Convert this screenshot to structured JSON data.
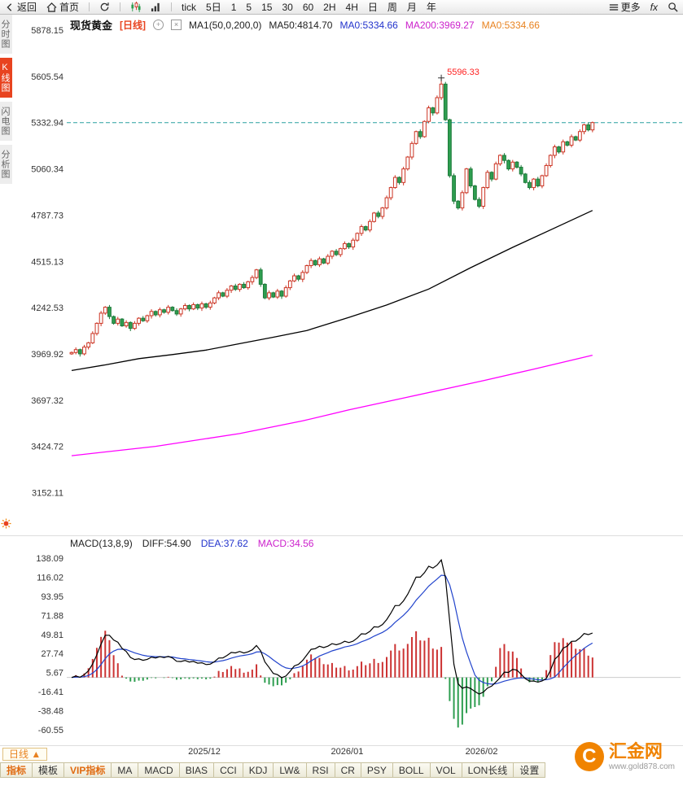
{
  "toolbar": {
    "items": [
      {
        "name": "back",
        "icon": "back-icon",
        "label": "返回"
      },
      {
        "name": "home",
        "icon": "home-icon",
        "label": "首页"
      },
      {
        "type": "sep"
      },
      {
        "name": "refresh",
        "icon": "refresh-icon",
        "label": ""
      },
      {
        "type": "sep"
      },
      {
        "name": "candle-view",
        "icon": "candles-icon",
        "label": ""
      },
      {
        "name": "volume-view",
        "icon": "volume-icon",
        "label": ""
      },
      {
        "type": "sep"
      },
      {
        "name": "tick",
        "label": "tick"
      },
      {
        "name": "range-5d",
        "label": "5日"
      },
      {
        "name": "period-1",
        "label": "1"
      },
      {
        "name": "period-5",
        "label": "5"
      },
      {
        "name": "period-15",
        "label": "15"
      },
      {
        "name": "period-30",
        "label": "30"
      },
      {
        "name": "period-60",
        "label": "60"
      },
      {
        "name": "period-2h",
        "label": "2H"
      },
      {
        "name": "period-4h",
        "label": "4H"
      },
      {
        "name": "period-day",
        "label": "日"
      },
      {
        "name": "period-week",
        "label": "周"
      },
      {
        "name": "period-month",
        "label": "月"
      },
      {
        "name": "period-year",
        "label": "年"
      },
      {
        "type": "spacer"
      },
      {
        "name": "more",
        "icon": "menu-icon",
        "label": "更多"
      },
      {
        "name": "fx",
        "label": "fx"
      },
      {
        "name": "search",
        "icon": "search-icon",
        "label": ""
      }
    ]
  },
  "sidebar": {
    "items": [
      {
        "label": "分时图",
        "active": false
      },
      {
        "label": "K线图",
        "active": true
      },
      {
        "label": "闪电图",
        "active": false
      },
      {
        "label": "分析图",
        "active": false
      }
    ]
  },
  "price_header": {
    "symbol": "现货黄金",
    "period": "[日线]",
    "ma_settings": "MA1(50,0,200,0)",
    "ma50": "MA50:4814.70",
    "ma0_blue": "MA0:5334.66",
    "ma200": "MA200:3969.27",
    "ma0_orange": "MA0:5334.66"
  },
  "macd_header": {
    "title": "MACD(13,8,9)",
    "diff": "DIFF:54.90",
    "dea": "DEA:37.62",
    "macd": "MACD:34.56"
  },
  "bottom": {
    "period_label": "日线 ▲",
    "tabs": [
      "指标",
      "模板",
      "VIP指标",
      "MA",
      "MACD",
      "BIAS",
      "CCI",
      "KDJ",
      "LW&",
      "RSI",
      "CR",
      "PSY",
      "BOLL",
      "VOL",
      "LON长线",
      "设置"
    ],
    "orange_tabs": [
      0,
      2
    ]
  },
  "watermark": {
    "brand": "汇金网",
    "url": "www.gold878.com",
    "logo_letter": "C"
  },
  "chart_data": {
    "type": "candlestick",
    "title": "现货黄金 [日线]",
    "first_open": 3970,
    "closes": [
      3978,
      3995,
      3970,
      4010,
      4035,
      4090,
      4150,
      4210,
      4245,
      4190,
      4150,
      4175,
      4135,
      4155,
      4120,
      4150,
      4180,
      4165,
      4195,
      4220,
      4200,
      4230,
      4215,
      4245,
      4225,
      4205,
      4235,
      4255,
      4235,
      4260,
      4240,
      4265,
      4245,
      4270,
      4300,
      4330,
      4310,
      4345,
      4370,
      4350,
      4380,
      4360,
      4395,
      4420,
      4465,
      4380,
      4300,
      4330,
      4305,
      4340,
      4310,
      4360,
      4400,
      4430,
      4410,
      4450,
      4490,
      4520,
      4495,
      4530,
      4505,
      4545,
      4575,
      4555,
      4590,
      4620,
      4600,
      4640,
      4680,
      4720,
      4700,
      4750,
      4800,
      4780,
      4830,
      4890,
      4950,
      5010,
      4980,
      5060,
      5130,
      5210,
      5280,
      5250,
      5340,
      5420,
      5390,
      5480,
      5560,
      5350,
      5020,
      4870,
      4830,
      4920,
      5060,
      4960,
      4880,
      4840,
      4950,
      5040,
      5000,
      5090,
      5140,
      5110,
      5060,
      5100,
      5070,
      5030,
      4980,
      4950,
      5000,
      4960,
      5020,
      5080,
      5140,
      5190,
      5160,
      5220,
      5200,
      5250,
      5230,
      5280,
      5320,
      5290,
      5332.94
    ],
    "peak_high": 5596.33,
    "peak_annotation": "5596.33",
    "last_close": 5332.94,
    "price_axis_ticks": [
      5878.15,
      5605.54,
      5332.94,
      5060.34,
      4787.73,
      4515.13,
      4242.53,
      3969.92,
      3697.32,
      3424.72,
      3152.11
    ],
    "x_ticks": [
      {
        "label": "2025/12",
        "index": 32
      },
      {
        "label": "2026/01",
        "index": 66
      },
      {
        "label": "2026/02",
        "index": 98
      }
    ],
    "ma50_points": [
      [
        0,
        3872
      ],
      [
        8,
        3905
      ],
      [
        16,
        3942
      ],
      [
        24,
        3966
      ],
      [
        32,
        3992
      ],
      [
        40,
        4030
      ],
      [
        48,
        4068
      ],
      [
        56,
        4108
      ],
      [
        66,
        4185
      ],
      [
        75,
        4258
      ],
      [
        85,
        4352
      ],
      [
        95,
        4478
      ],
      [
        105,
        4598
      ],
      [
        115,
        4712
      ],
      [
        124,
        4815
      ]
    ],
    "ma200_points": [
      [
        0,
        3370
      ],
      [
        20,
        3425
      ],
      [
        40,
        3500
      ],
      [
        55,
        3575
      ],
      [
        66,
        3640
      ],
      [
        80,
        3715
      ],
      [
        98,
        3812
      ],
      [
        110,
        3880
      ],
      [
        124,
        3962
      ]
    ],
    "macd": {
      "params": "(13,8,9)",
      "diff_value": 54.9,
      "dea_value": 37.62,
      "macd_value": 34.56,
      "axis_ticks": [
        138.09,
        116.02,
        93.95,
        71.88,
        49.81,
        27.74,
        5.67,
        -16.41,
        -38.48,
        -60.55
      ]
    },
    "colors": {
      "up": "#cc3322",
      "down": "#2e9e50",
      "down_stroke": "#1d7a3a",
      "ma50": "#000000",
      "ma200": "#ff00ff",
      "price_line": "#2aa0a0",
      "annotation": "#ff2222",
      "diff_line": "#000000",
      "dea_line": "#2244cc",
      "hist_pos": "#cc3333",
      "hist_neg": "#2e9e50"
    }
  }
}
